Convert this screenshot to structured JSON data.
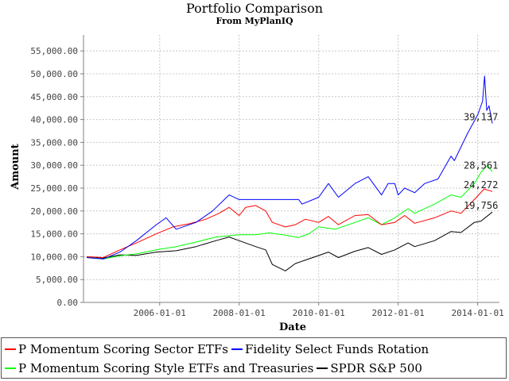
{
  "chart_data": {
    "type": "line",
    "title": "Portfolio Comparison",
    "subtitle": "From MyPlanIQ",
    "xlabel": "Date",
    "ylabel": "Amount",
    "x_ticks": [
      "2006-01-01",
      "2008-01-01",
      "2010-01-01",
      "2012-01-01",
      "2014-01-01"
    ],
    "y_ticks": [
      "0.00",
      "5,000.00",
      "10,000.00",
      "15,000.00",
      "20,000.00",
      "25,000.00",
      "30,000.00",
      "35,000.00",
      "40,000.00",
      "45,000.00",
      "50,000.00",
      "55,000.00"
    ],
    "xlim": [
      "2004-02-01",
      "2014-07-20"
    ],
    "ylim": [
      0,
      58500
    ],
    "grid": true,
    "legend_position": "bottom",
    "series": [
      {
        "name": "P Momentum Scoring Sector ETFs",
        "color": "#ff0000",
        "end_label": "24,272",
        "points": [
          [
            "2004-03-01",
            10000
          ],
          [
            "2004-08-01",
            9800
          ],
          [
            "2005-01-01",
            11500
          ],
          [
            "2005-06-01",
            13000
          ],
          [
            "2005-12-01",
            15000
          ],
          [
            "2006-05-01",
            16500
          ],
          [
            "2006-10-01",
            17200
          ],
          [
            "2007-03-01",
            18200
          ],
          [
            "2007-07-01",
            19500
          ],
          [
            "2007-10-01",
            20800
          ],
          [
            "2008-01-01",
            19000
          ],
          [
            "2008-03-01",
            20800
          ],
          [
            "2008-06-01",
            21200
          ],
          [
            "2008-09-01",
            20000
          ],
          [
            "2008-11-01",
            17500
          ],
          [
            "2009-03-01",
            16500
          ],
          [
            "2009-06-01",
            17000
          ],
          [
            "2009-09-01",
            18200
          ],
          [
            "2010-01-01",
            17500
          ],
          [
            "2010-04-01",
            18800
          ],
          [
            "2010-07-01",
            17000
          ],
          [
            "2010-12-01",
            19000
          ],
          [
            "2011-04-01",
            19200
          ],
          [
            "2011-08-01",
            17000
          ],
          [
            "2011-12-01",
            17500
          ],
          [
            "2012-03-01",
            19000
          ],
          [
            "2012-06-01",
            17300
          ],
          [
            "2012-12-01",
            18500
          ],
          [
            "2013-05-01",
            20000
          ],
          [
            "2013-08-01",
            19500
          ],
          [
            "2013-12-01",
            22500
          ],
          [
            "2014-03-01",
            24800
          ],
          [
            "2014-05-15",
            24272
          ]
        ]
      },
      {
        "name": "Fidelity Select Funds Rotation",
        "color": "#0000ff",
        "end_label": "39,137",
        "points": [
          [
            "2004-03-01",
            9800
          ],
          [
            "2004-08-01",
            9500
          ],
          [
            "2005-01-01",
            11000
          ],
          [
            "2005-06-01",
            13500
          ],
          [
            "2005-12-01",
            17000
          ],
          [
            "2006-03-01",
            18500
          ],
          [
            "2006-06-01",
            16000
          ],
          [
            "2006-12-01",
            17500
          ],
          [
            "2007-05-01",
            20000
          ],
          [
            "2007-10-01",
            23500
          ],
          [
            "2008-01-01",
            22500
          ],
          [
            "2009-07-01",
            22500
          ],
          [
            "2009-08-01",
            21500
          ],
          [
            "2010-01-01",
            23000
          ],
          [
            "2010-04-01",
            26000
          ],
          [
            "2010-07-01",
            23000
          ],
          [
            "2010-12-01",
            26000
          ],
          [
            "2011-04-01",
            27500
          ],
          [
            "2011-08-01",
            23500
          ],
          [
            "2011-10-01",
            26000
          ],
          [
            "2011-12-01",
            26000
          ],
          [
            "2012-01-01",
            23500
          ],
          [
            "2012-03-01",
            25000
          ],
          [
            "2012-06-01",
            24000
          ],
          [
            "2012-09-01",
            26000
          ],
          [
            "2013-01-01",
            27000
          ],
          [
            "2013-05-01",
            32000
          ],
          [
            "2013-06-01",
            31000
          ],
          [
            "2013-10-01",
            37000
          ],
          [
            "2014-01-01",
            41000
          ],
          [
            "2014-02-15",
            44000
          ],
          [
            "2014-03-05",
            49500
          ],
          [
            "2014-03-25",
            42000
          ],
          [
            "2014-04-15",
            43000
          ],
          [
            "2014-05-15",
            39137
          ]
        ]
      },
      {
        "name": "P Momentum Scoring Style ETFs and Treasuries",
        "color": "#00ff00",
        "end_label": "28,561",
        "points": [
          [
            "2004-03-01",
            9800
          ],
          [
            "2004-08-01",
            9500
          ],
          [
            "2005-01-01",
            10200
          ],
          [
            "2005-06-01",
            10600
          ],
          [
            "2005-12-01",
            11500
          ],
          [
            "2006-06-01",
            12200
          ],
          [
            "2006-12-01",
            13200
          ],
          [
            "2007-06-01",
            14300
          ],
          [
            "2008-01-01",
            14800
          ],
          [
            "2008-06-01",
            14800
          ],
          [
            "2008-10-01",
            15200
          ],
          [
            "2009-03-01",
            14700
          ],
          [
            "2009-07-01",
            14200
          ],
          [
            "2009-10-01",
            15000
          ],
          [
            "2010-01-01",
            16500
          ],
          [
            "2010-06-01",
            16000
          ],
          [
            "2010-12-01",
            17500
          ],
          [
            "2011-04-01",
            18500
          ],
          [
            "2011-08-01",
            17000
          ],
          [
            "2011-12-01",
            18500
          ],
          [
            "2012-04-01",
            20500
          ],
          [
            "2012-06-01",
            19500
          ],
          [
            "2012-12-01",
            21500
          ],
          [
            "2013-05-01",
            23500
          ],
          [
            "2013-08-01",
            23000
          ],
          [
            "2013-12-01",
            26000
          ],
          [
            "2014-02-01",
            28500
          ],
          [
            "2014-04-01",
            30000
          ],
          [
            "2014-05-15",
            28561
          ]
        ]
      },
      {
        "name": "SPDR S&P 500",
        "color": "#000000",
        "end_label": "19,756",
        "points": [
          [
            "2004-03-01",
            10000
          ],
          [
            "2004-08-01",
            9700
          ],
          [
            "2005-01-01",
            10400
          ],
          [
            "2005-06-01",
            10300
          ],
          [
            "2005-12-01",
            11000
          ],
          [
            "2006-06-01",
            11300
          ],
          [
            "2006-12-01",
            12200
          ],
          [
            "2007-06-01",
            13500
          ],
          [
            "2007-10-01",
            14300
          ],
          [
            "2008-01-01",
            13500
          ],
          [
            "2008-06-01",
            12200
          ],
          [
            "2008-09-01",
            11500
          ],
          [
            "2008-11-01",
            8300
          ],
          [
            "2009-03-01",
            6900
          ],
          [
            "2009-06-01",
            8500
          ],
          [
            "2009-12-01",
            10000
          ],
          [
            "2010-04-01",
            11000
          ],
          [
            "2010-07-01",
            9800
          ],
          [
            "2010-12-01",
            11200
          ],
          [
            "2011-04-01",
            12000
          ],
          [
            "2011-08-01",
            10500
          ],
          [
            "2011-12-01",
            11500
          ],
          [
            "2012-04-01",
            13000
          ],
          [
            "2012-06-01",
            12200
          ],
          [
            "2012-12-01",
            13500
          ],
          [
            "2013-05-01",
            15500
          ],
          [
            "2013-08-01",
            15300
          ],
          [
            "2013-12-01",
            17500
          ],
          [
            "2014-02-01",
            17800
          ],
          [
            "2014-05-15",
            19756
          ]
        ]
      }
    ]
  },
  "legend": {
    "row1": [
      "P Momentum Scoring Sector ETFs",
      "Fidelity Select Funds Rotation"
    ],
    "row2": [
      "P Momentum Scoring Style ETFs and Treasuries",
      "SPDR S&P 500"
    ],
    "colors": [
      "#ff0000",
      "#0000ff",
      "#00ff00",
      "#000000"
    ]
  }
}
